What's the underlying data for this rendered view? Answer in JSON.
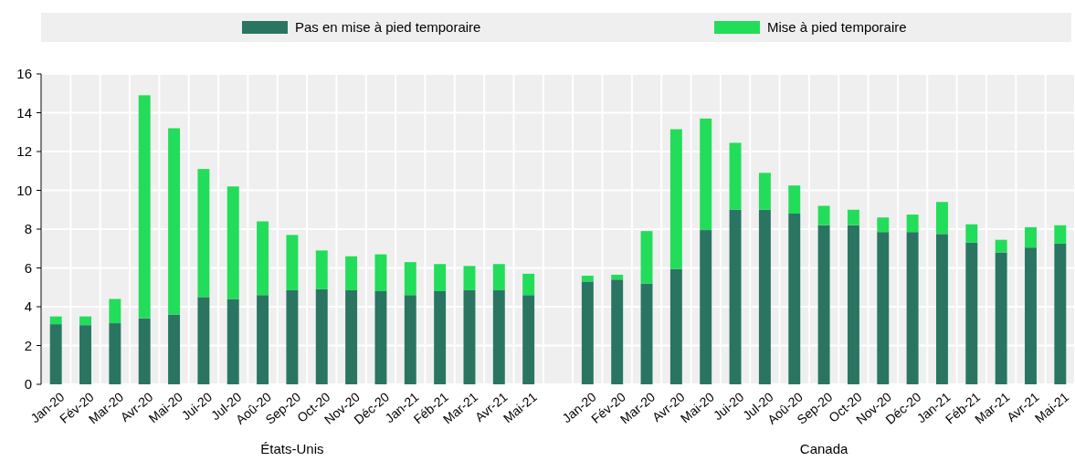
{
  "chart_data": {
    "type": "bar",
    "stacked": true,
    "categories": [
      "Jan-20",
      "Fév-20",
      "Mar-20",
      "Avr-20",
      "Mai-20",
      "Jui-20",
      "Jul-20",
      "Aoû-20",
      "Sep-20",
      "Oct-20",
      "Nov-20",
      "Déc-20",
      "Jan-21",
      "Féb-21",
      "Mar-21",
      "Avr-21",
      "Mai-21",
      null,
      "Jan-20",
      "Fév-20",
      "Mar-20",
      "Avr-20",
      "Mai-20",
      "Jui-20",
      "Jul-20",
      "Aoû-20",
      "Sep-20",
      "Oct-20",
      "Nov-20",
      "Déc-20",
      "Jan-21",
      "Féb-21",
      "Mar-21",
      "Avr-21",
      "Mai-21"
    ],
    "series": [
      {
        "name": "Pas en mise à pied temporaire",
        "color": "#2a7562",
        "values": [
          3.1,
          3.05,
          3.15,
          3.4,
          3.6,
          4.5,
          4.4,
          4.6,
          4.85,
          4.9,
          4.85,
          4.8,
          4.6,
          4.8,
          4.85,
          4.85,
          4.6,
          null,
          5.3,
          5.4,
          5.2,
          5.95,
          7.95,
          9.0,
          9.0,
          8.8,
          8.2,
          8.2,
          7.85,
          7.85,
          7.75,
          7.3,
          6.8,
          7.05,
          7.25
        ]
      },
      {
        "name": "Mise à pied temporaire",
        "color": "#22dd5a",
        "values": [
          0.4,
          0.45,
          1.25,
          11.5,
          9.6,
          6.6,
          5.8,
          3.8,
          2.85,
          2.0,
          1.75,
          1.9,
          1.7,
          1.4,
          1.25,
          1.35,
          1.1,
          null,
          0.3,
          0.25,
          2.7,
          7.2,
          5.75,
          3.45,
          1.9,
          1.45,
          1.0,
          0.8,
          0.75,
          0.9,
          1.65,
          0.95,
          0.65,
          1.05,
          0.95
        ]
      }
    ],
    "ylim": [
      0,
      16
    ],
    "yticks": [
      0,
      2,
      4,
      6,
      8,
      10,
      12,
      14,
      16
    ],
    "grid": true,
    "legend": "top",
    "annotations": [
      "États-Unis",
      "Canada"
    ]
  }
}
